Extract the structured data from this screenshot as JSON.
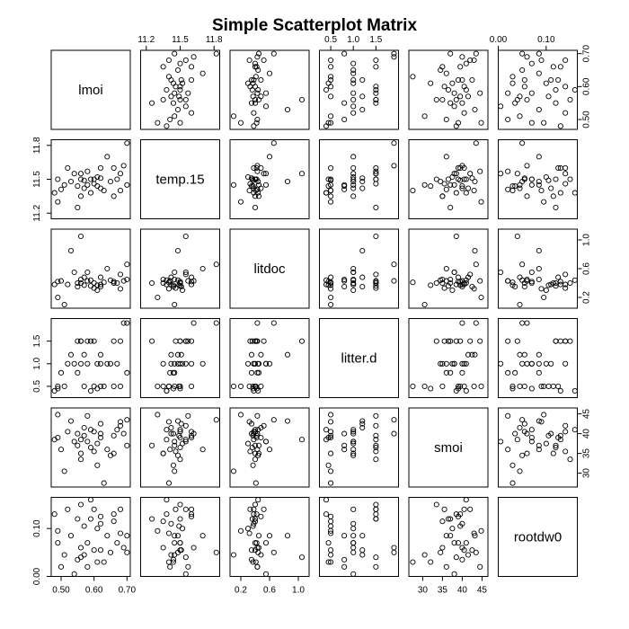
{
  "chart_data": {
    "type": "scatter",
    "title": "Simple Scatterplot Matrix",
    "variables": [
      "lmoi",
      "temp.15",
      "litdoc",
      "litter.d",
      "smoi",
      "rootdw0"
    ],
    "ranges": {
      "lmoi": [
        0.47,
        0.71
      ],
      "temp.15": [
        11.15,
        11.85
      ],
      "litdoc": [
        0.05,
        1.15
      ],
      "litter.d": [
        0.25,
        2.0
      ],
      "smoi": [
        26.5,
        46.5
      ],
      "rootdw0": [
        0.0,
        0.165
      ]
    },
    "ticks": {
      "lmoi": [
        0.5,
        0.6,
        0.7
      ],
      "temp.15": [
        11.2,
        11.5,
        11.8
      ],
      "litdoc": [
        0.2,
        0.6,
        1.0
      ],
      "litter.d": [
        0.5,
        1.0,
        1.5
      ],
      "smoi": [
        30,
        35,
        40,
        45
      ],
      "rootdw0": [
        0.0,
        0.1
      ]
    },
    "tick_labels": {
      "lmoi": [
        "0.50",
        "0.60",
        "0.70"
      ],
      "temp.15": [
        "11.2",
        "11.5",
        "11.8"
      ],
      "litdoc": [
        "0.2",
        "0.6",
        "1.0"
      ],
      "litter.d": [
        "0.5",
        "1.0",
        "1.5"
      ],
      "smoi": [
        "30",
        "35",
        "40",
        "45"
      ],
      "rootdw0": [
        "0.00",
        "0.10"
      ]
    },
    "observations": [
      {
        "lmoi": 0.48,
        "temp.15": 11.38,
        "litdoc": 0.38,
        "litter.d": 0.4,
        "smoi": 38.5,
        "rootdw0": 0.13
      },
      {
        "lmoi": 0.49,
        "temp.15": 11.3,
        "litdoc": 0.2,
        "litter.d": 0.5,
        "smoi": 44.8,
        "rootdw0": 0.095
      },
      {
        "lmoi": 0.49,
        "temp.15": 11.5,
        "litdoc": 0.42,
        "litter.d": 0.45,
        "smoi": 39.0,
        "rootdw0": 0.07
      },
      {
        "lmoi": 0.5,
        "temp.15": 11.41,
        "litdoc": 0.43,
        "litter.d": 0.8,
        "smoi": 36.0,
        "rootdw0": 0.02
      },
      {
        "lmoi": 0.51,
        "temp.15": 11.45,
        "litdoc": 0.1,
        "litter.d": 0.5,
        "smoi": 30.5,
        "rootdw0": 0.045
      },
      {
        "lmoi": 0.52,
        "temp.15": 11.6,
        "litdoc": 0.38,
        "litter.d": 1.0,
        "smoi": 40.5,
        "rootdw0": 0.14
      },
      {
        "lmoi": 0.53,
        "temp.15": 11.48,
        "litdoc": 0.85,
        "litter.d": 1.2,
        "smoi": 43.2,
        "rootdw0": 0.085
      },
      {
        "lmoi": 0.54,
        "temp.15": 11.55,
        "litdoc": 0.55,
        "litter.d": 1.0,
        "smoi": 38.0,
        "rootdw0": 0.005
      },
      {
        "lmoi": 0.55,
        "temp.15": 11.25,
        "litdoc": 0.4,
        "litter.d": 1.5,
        "smoi": 37.0,
        "rootdw0": 0.12
      },
      {
        "lmoi": 0.55,
        "temp.15": 11.44,
        "litdoc": 0.35,
        "litter.d": 0.8,
        "smoi": 40.0,
        "rootdw0": 0.035
      },
      {
        "lmoi": 0.56,
        "temp.15": 11.5,
        "litdoc": 0.4,
        "litter.d": 1.5,
        "smoi": 33.5,
        "rootdw0": 0.15
      },
      {
        "lmoi": 0.56,
        "temp.15": 11.35,
        "litdoc": 0.45,
        "litter.d": 1.0,
        "smoi": 35.0,
        "rootdw0": 0.06
      },
      {
        "lmoi": 0.57,
        "temp.15": 11.49,
        "litdoc": 0.37,
        "litter.d": 0.5,
        "smoi": 39.5,
        "rootdw0": 0.105
      },
      {
        "lmoi": 0.57,
        "temp.15": 11.42,
        "litdoc": 0.48,
        "litter.d": 1.2,
        "smoi": 41.5,
        "rootdw0": 0.045
      },
      {
        "lmoi": 0.58,
        "temp.15": 11.57,
        "litdoc": 0.43,
        "litter.d": 1.5,
        "smoi": 44.5,
        "rootdw0": 0.02
      },
      {
        "lmoi": 0.58,
        "temp.15": 11.45,
        "litdoc": 0.55,
        "litter.d": 1.0,
        "smoi": 38.0,
        "rootdw0": 0.07
      },
      {
        "lmoi": 0.59,
        "temp.15": 11.5,
        "litdoc": 0.36,
        "litter.d": 1.5,
        "smoi": 36.5,
        "rootdw0": 0.12
      },
      {
        "lmoi": 0.59,
        "temp.15": 11.38,
        "litdoc": 0.44,
        "litter.d": 0.4,
        "smoi": 41.0,
        "rootdw0": 0.16
      },
      {
        "lmoi": 0.6,
        "temp.15": 11.5,
        "litdoc": 0.4,
        "litter.d": 0.5,
        "smoi": 40.5,
        "rootdw0": 0.055
      },
      {
        "lmoi": 0.6,
        "temp.15": 11.46,
        "litdoc": 0.33,
        "litter.d": 1.5,
        "smoi": 35.5,
        "rootdw0": 0.14
      },
      {
        "lmoi": 0.61,
        "temp.15": 11.52,
        "litdoc": 0.3,
        "litter.d": 1.0,
        "smoi": 37.5,
        "rootdw0": 0.1
      },
      {
        "lmoi": 0.61,
        "temp.15": 11.44,
        "litdoc": 0.37,
        "litter.d": 0.45,
        "smoi": 32.0,
        "rootdw0": 0.03
      },
      {
        "lmoi": 0.62,
        "temp.15": 11.51,
        "litdoc": 0.35,
        "litter.d": 1.2,
        "smoi": 42.5,
        "rootdw0": 0.055
      },
      {
        "lmoi": 0.62,
        "temp.15": 11.6,
        "litdoc": 0.48,
        "litter.d": 0.5,
        "smoi": 39.0,
        "rootdw0": 0.125
      },
      {
        "lmoi": 0.63,
        "temp.15": 11.4,
        "litdoc": 0.41,
        "litter.d": 0.5,
        "smoi": 27.5,
        "rootdw0": 0.03
      },
      {
        "lmoi": 0.64,
        "temp.15": 11.7,
        "litdoc": 0.6,
        "litter.d": 1.0,
        "smoi": 36.0,
        "rootdw0": 0.085
      },
      {
        "lmoi": 0.65,
        "temp.15": 11.48,
        "litdoc": 0.44,
        "litter.d": 1.0,
        "smoi": 34.5,
        "rootdw0": 0.05
      },
      {
        "lmoi": 0.66,
        "temp.15": 11.35,
        "litdoc": 0.4,
        "litter.d": 0.5,
        "smoi": 35.0,
        "rootdw0": 0.115
      },
      {
        "lmoi": 0.66,
        "temp.15": 11.6,
        "litdoc": 0.42,
        "litter.d": 1.5,
        "smoi": 39.5,
        "rootdw0": 0.13
      },
      {
        "lmoi": 0.67,
        "temp.15": 11.5,
        "litdoc": 0.4,
        "litter.d": 1.0,
        "smoi": 41.0,
        "rootdw0": 0.07
      },
      {
        "lmoi": 0.68,
        "temp.15": 11.4,
        "litdoc": 0.32,
        "litter.d": 0.5,
        "smoi": 43.0,
        "rootdw0": 0.09
      },
      {
        "lmoi": 0.68,
        "temp.15": 11.55,
        "litdoc": 0.52,
        "litter.d": 1.5,
        "smoi": 42.0,
        "rootdw0": 0.14
      },
      {
        "lmoi": 0.69,
        "temp.15": 11.62,
        "litdoc": 0.43,
        "litter.d": 1.9,
        "smoi": 40.0,
        "rootdw0": 0.06
      },
      {
        "lmoi": 0.7,
        "temp.15": 11.82,
        "litdoc": 0.66,
        "litter.d": 1.9,
        "smoi": 43.5,
        "rootdw0": 0.05
      },
      {
        "lmoi": 0.7,
        "temp.15": 11.45,
        "litdoc": 0.45,
        "litter.d": 0.8,
        "smoi": 37.0,
        "rootdw0": 0.085
      },
      {
        "lmoi": 0.56,
        "temp.15": 11.55,
        "litdoc": 1.05,
        "litter.d": 1.5,
        "smoi": 38.5,
        "rootdw0": 0.04
      },
      {
        "lmoi": 0.62,
        "temp.15": 11.42,
        "litdoc": 0.38,
        "litter.d": 1.0,
        "smoi": 40.0,
        "rootdw0": 0.11
      }
    ]
  }
}
